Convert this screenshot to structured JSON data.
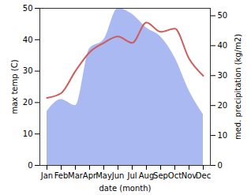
{
  "chart_data": {
    "type": "line",
    "x_label": "date (month)",
    "y_label": "max temp (C)",
    "y2_label": "med. precipitation (kg/m2)",
    "categories": [
      "Jan",
      "Feb",
      "Mar",
      "Apr",
      "May",
      "Jun",
      "Jul",
      "Aug",
      "Sep",
      "Oct",
      "Nov",
      "Dec"
    ],
    "series": [
      {
        "name": "med. precipitation",
        "type": "area",
        "axis": "y2",
        "color": "#aab9f2",
        "values": [
          18,
          22,
          20,
          39,
          42,
          52.5,
          50.5,
          46,
          43,
          36,
          25,
          17
        ]
      },
      {
        "name": "max temp",
        "type": "line",
        "color": "#cd5c5c",
        "values": [
          21.5,
          23,
          30,
          36,
          39,
          41,
          39,
          45.5,
          42.5,
          43.5,
          34,
          28.5
        ]
      }
    ],
    "ylim": [
      0,
      50
    ],
    "yticks": [
      0,
      10,
      20,
      30,
      40,
      50
    ],
    "y2lim": [
      0,
      52.5
    ],
    "y2ticks": [
      0,
      10,
      20,
      30,
      40,
      50
    ]
  }
}
